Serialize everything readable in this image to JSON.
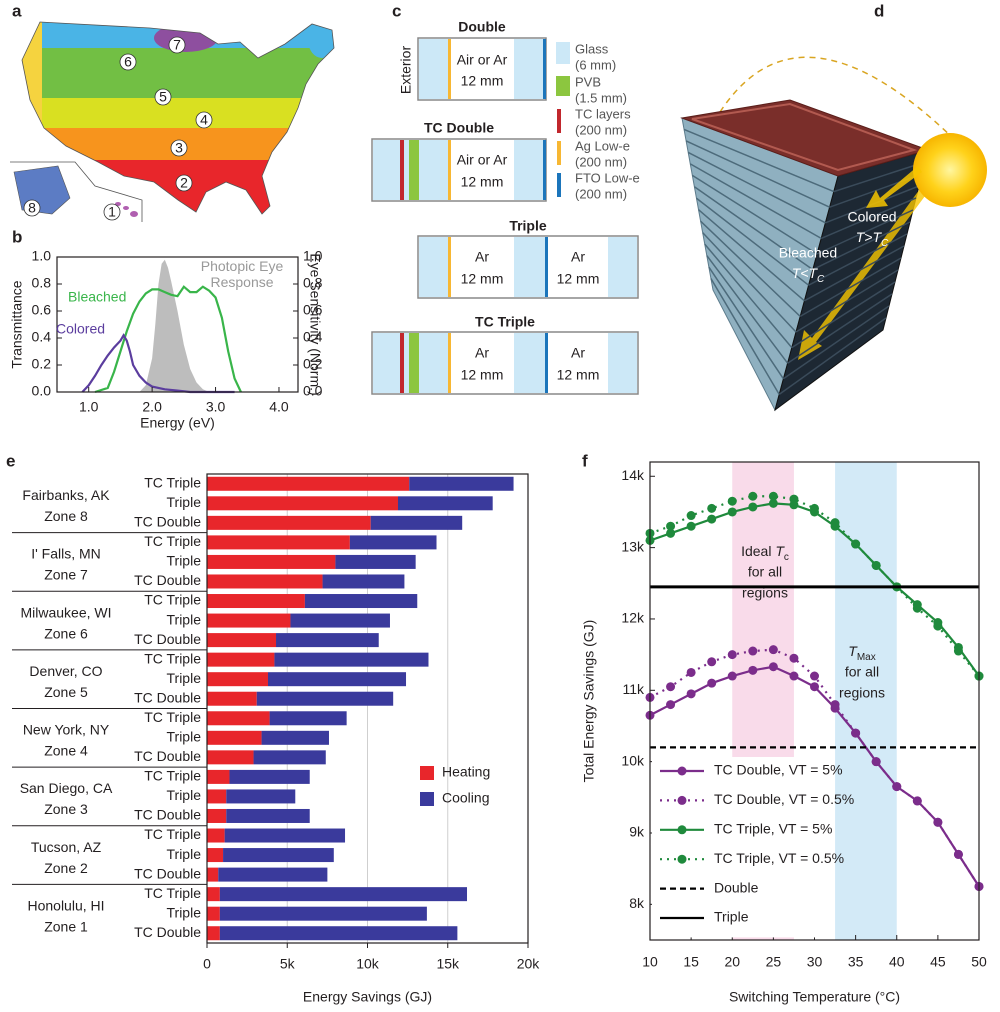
{
  "panel_letters": [
    "a",
    "b",
    "c",
    "d",
    "e",
    "f"
  ],
  "map": {
    "zones": [
      "1",
      "2",
      "3",
      "4",
      "5",
      "6",
      "7",
      "8"
    ]
  },
  "window_diagram": {
    "exterior_label": "Exterior",
    "windows": [
      {
        "title": "Double",
        "gaps": [
          [
            "Air or Ar",
            "12 mm"
          ]
        ]
      },
      {
        "title": "TC Double",
        "gaps": [
          [
            "Air or Ar",
            "12 mm"
          ]
        ]
      },
      {
        "title": "Triple",
        "gaps": [
          [
            "Ar",
            "12 mm"
          ],
          [
            "Ar",
            "12 mm"
          ]
        ]
      },
      {
        "title": "TC Triple",
        "gaps": [
          [
            "Ar",
            "12 mm"
          ],
          [
            "Ar",
            "12 mm"
          ]
        ]
      }
    ],
    "legend": [
      {
        "name": "Glass",
        "detail": "(6 mm)"
      },
      {
        "name": "PVB",
        "detail": "(1.5 mm)"
      },
      {
        "name": "TC layers",
        "detail": "(200 nm)"
      },
      {
        "name": "Ag Low-e",
        "detail": "(200 nm)"
      },
      {
        "name": "FTO Low-e",
        "detail": "(200 nm)"
      }
    ]
  },
  "building": {
    "colored": "Colored",
    "colored_condition": {
      "lead": "T>T",
      "sub": "C"
    },
    "bleached": "Bleached",
    "bleached_condition": {
      "lead": "T<T",
      "sub": "C"
    }
  },
  "chart_data": [
    {
      "type": "line",
      "xlabel": "Energy (eV)",
      "ylabel": "Transmittance",
      "y2label": "Eye Sensitivity (Norm.)",
      "xlim": [
        0.5,
        4.3
      ],
      "ylim": [
        0,
        1
      ],
      "y2lim": [
        0,
        1
      ],
      "xticks": [
        {
          "value": 1,
          "label": "1.0"
        },
        {
          "value": 2,
          "label": "2.0"
        },
        {
          "value": 3,
          "label": "3.0"
        },
        {
          "value": 4,
          "label": "4.0"
        }
      ],
      "yticks": [
        {
          "value": 0,
          "label": "0.0"
        },
        0.2,
        0.4,
        0.6,
        0.8,
        {
          "value": 1,
          "label": "1.0"
        }
      ],
      "y2ticks": [
        {
          "value": 0,
          "label": "0.0"
        },
        0.2,
        0.4,
        0.6,
        0.8,
        {
          "value": 1,
          "label": "1.0"
        }
      ],
      "legend": "inline",
      "series": [
        {
          "name": "Photopic Eye Response",
          "color": "#bdbdbd",
          "axis": "y2",
          "fill": true,
          "x": [
            1.8,
            1.9,
            2.0,
            2.05,
            2.1,
            2.15,
            2.2,
            2.25,
            2.3,
            2.4,
            2.5,
            2.6,
            2.7,
            2.8,
            2.9
          ],
          "values": [
            0,
            0.05,
            0.25,
            0.5,
            0.8,
            0.95,
            0.98,
            0.92,
            0.82,
            0.6,
            0.35,
            0.17,
            0.07,
            0.02,
            0
          ]
        },
        {
          "name": "Bleached",
          "color": "#39b54a",
          "x": [
            1.1,
            1.3,
            1.4,
            1.5,
            1.6,
            1.7,
            1.8,
            1.9,
            2.0,
            2.1,
            2.2,
            2.3,
            2.4,
            2.5,
            2.6,
            2.7,
            2.8,
            2.9,
            3.0,
            3.1,
            3.2,
            3.3,
            3.4
          ],
          "values": [
            0,
            0.03,
            0.15,
            0.3,
            0.45,
            0.58,
            0.67,
            0.73,
            0.76,
            0.76,
            0.74,
            0.72,
            0.71,
            0.78,
            0.74,
            0.74,
            0.78,
            0.75,
            0.7,
            0.55,
            0.3,
            0.1,
            0
          ]
        },
        {
          "name": "Colored",
          "color": "#5b3d9e",
          "x": [
            0.9,
            1.0,
            1.1,
            1.2,
            1.3,
            1.4,
            1.5,
            1.55,
            1.6,
            1.65,
            1.7,
            1.8,
            1.9,
            2.0,
            2.2,
            2.4,
            2.6,
            2.8,
            3.0,
            3.2,
            3.3
          ],
          "values": [
            0,
            0.05,
            0.12,
            0.2,
            0.27,
            0.33,
            0.38,
            0.42,
            0.38,
            0.3,
            0.2,
            0.12,
            0.07,
            0.04,
            0.02,
            0.01,
            0,
            0,
            0,
            0,
            0
          ]
        }
      ]
    },
    {
      "type": "bar",
      "orientation": "horizontal",
      "stacked": true,
      "xlabel": "Energy Savings (GJ)",
      "xlim": [
        0,
        20000
      ],
      "xticks": [
        0,
        {
          "value": 5000,
          "label": "5k"
        },
        {
          "value": 10000,
          "label": "10k"
        },
        {
          "value": 15000,
          "label": "15k"
        },
        {
          "value": 20000,
          "label": "20k"
        }
      ],
      "grid": true,
      "legend": "right",
      "groups": [
        {
          "name": "Fairbanks, AK",
          "zone": "Zone 8"
        },
        {
          "name": "I' Falls, MN",
          "zone": "Zone 7"
        },
        {
          "name": "Milwaukee, WI",
          "zone": "Zone 6"
        },
        {
          "name": "Denver, CO",
          "zone": "Zone 5"
        },
        {
          "name": "New York, NY",
          "zone": "Zone 4"
        },
        {
          "name": "San Diego, CA",
          "zone": "Zone 3"
        },
        {
          "name": "Tucson, AZ",
          "zone": "Zone 2"
        },
        {
          "name": "Honolulu, HI",
          "zone": "Zone 1"
        }
      ],
      "categories": [
        "TC Triple",
        "Triple",
        "TC Double",
        "TC Triple",
        "Triple",
        "TC Double",
        "TC Triple",
        "Triple",
        "TC Double",
        "TC Triple",
        "Triple",
        "TC Double",
        "TC Triple",
        "Triple",
        "TC Double",
        "TC Triple",
        "Triple",
        "TC Double",
        "TC Triple",
        "Triple",
        "TC Double",
        "TC Triple",
        "Triple",
        "TC Double"
      ],
      "series": [
        {
          "name": "Heating",
          "color": "#e8262b",
          "values": [
            12600,
            11900,
            10200,
            8900,
            8000,
            7200,
            6100,
            5200,
            4300,
            4200,
            3800,
            3100,
            3900,
            3400,
            2900,
            1400,
            1200,
            1200,
            1100,
            1000,
            700,
            800,
            800,
            800
          ]
        },
        {
          "name": "Cooling",
          "color": "#3a3a9c",
          "values": [
            6500,
            5900,
            5700,
            5400,
            5000,
            5100,
            7000,
            6200,
            6400,
            9600,
            8600,
            8500,
            4800,
            4200,
            4500,
            5000,
            4300,
            5200,
            7500,
            6900,
            6800,
            15400,
            12900,
            14800
          ]
        }
      ]
    },
    {
      "type": "line",
      "xlabel": "Switching Temperature (°C)",
      "ylabel": "Total Energy Savings (GJ)",
      "xlim": [
        10,
        50
      ],
      "xticks": [
        10,
        15,
        20,
        25,
        30,
        35,
        40,
        45,
        50
      ],
      "ylim": [
        7500,
        14200
      ],
      "yticks": [
        {
          "value": 8000,
          "label": "8k"
        },
        {
          "value": 9000,
          "label": "9k"
        },
        {
          "value": 10000,
          "label": "10k"
        },
        {
          "value": 11000,
          "label": "11k"
        },
        {
          "value": 12000,
          "label": "12k"
        },
        {
          "value": 13000,
          "label": "13k"
        },
        {
          "value": 14000,
          "label": "14k"
        }
      ],
      "legend": "lower-left",
      "bands": [
        {
          "x": [
            20,
            27.5
          ],
          "color": "#f9dbea",
          "lead": "Ideal ",
          "var": "T",
          "sub": "c",
          "rest": [
            "for all",
            "regions"
          ]
        },
        {
          "x": [
            32.5,
            40
          ],
          "color": "#d3eaf7",
          "var": "T",
          "sub": "Max",
          "rest": [
            "for all",
            "regions"
          ]
        }
      ],
      "x": [
        10,
        12.5,
        15,
        17.5,
        20,
        22.5,
        25,
        27.5,
        30,
        32.5,
        35,
        37.5,
        40,
        42.5,
        45,
        47.5,
        50
      ],
      "series": [
        {
          "name": "TC Double, VT = 5%",
          "color": "#7b2d8b",
          "dash": "solid",
          "marker": true,
          "values": [
            10650,
            10800,
            10950,
            11100,
            11200,
            11280,
            11330,
            11200,
            11050,
            10750,
            10400,
            10000,
            9650,
            9450,
            9150,
            8700,
            8250
          ]
        },
        {
          "name": "TC Double, VT = 0.5%",
          "color": "#7b2d8b",
          "dash": "dotted",
          "marker": true,
          "values": [
            10900,
            11050,
            11250,
            11400,
            11500,
            11550,
            11570,
            11450,
            11200,
            10800,
            10400,
            10000,
            9650,
            9450,
            9150,
            8700,
            8250
          ]
        },
        {
          "name": "TC Triple, VT = 5%",
          "color": "#1f8a3c",
          "dash": "solid",
          "marker": true,
          "values": [
            13100,
            13200,
            13300,
            13400,
            13500,
            13570,
            13620,
            13600,
            13500,
            13300,
            13050,
            12750,
            12450,
            12200,
            11950,
            11600,
            11200
          ]
        },
        {
          "name": "TC Triple, VT = 0.5%",
          "color": "#1f8a3c",
          "dash": "dotted",
          "marker": true,
          "values": [
            13200,
            13300,
            13450,
            13550,
            13650,
            13720,
            13720,
            13680,
            13550,
            13350,
            13050,
            12750,
            12450,
            12150,
            11900,
            11550,
            11200
          ]
        },
        {
          "name": "Double",
          "color": "#000000",
          "dash": "dashed",
          "marker": false,
          "values": [
            10200,
            10200,
            10200,
            10200,
            10200,
            10200,
            10200,
            10200,
            10200,
            10200,
            10200,
            10200,
            10200,
            10200,
            10200,
            10200,
            10200
          ]
        },
        {
          "name": "Triple",
          "color": "#000000",
          "dash": "solid",
          "marker": false,
          "values": [
            12450,
            12450,
            12450,
            12450,
            12450,
            12450,
            12450,
            12450,
            12450,
            12450,
            12450,
            12450,
            12450,
            12450,
            12450,
            12450,
            12450
          ]
        }
      ]
    }
  ]
}
